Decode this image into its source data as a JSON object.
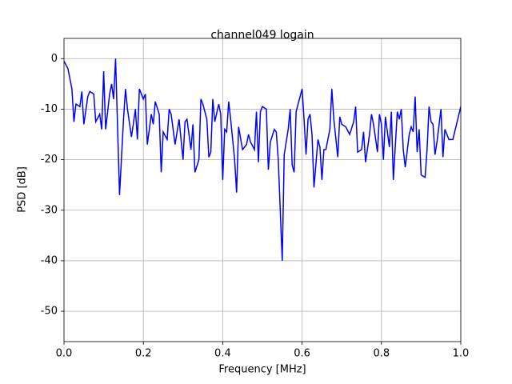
{
  "chart_data": {
    "type": "line",
    "title": "channel049 logain",
    "x_label": "Frequency [MHz]",
    "y_label": "PSD [dB]",
    "xlim": [
      0,
      1
    ],
    "ylim": [
      -56,
      4
    ],
    "xticks": [
      {
        "value": 0,
        "label": "0.0"
      },
      0.2,
      0.4,
      0.6,
      0.8,
      {
        "value": 1,
        "label": "1.0"
      }
    ],
    "yticks": [
      0,
      -10,
      -20,
      -30,
      -40,
      -50
    ],
    "grid": true,
    "series": [
      {
        "name": "channel049",
        "color": "#0000ff",
        "x": [
          0,
          0.01,
          0.02,
          0.025,
          0.03,
          0.04,
          0.045,
          0.05,
          0.06,
          0.065,
          0.075,
          0.08,
          0.09,
          0.095,
          0.1,
          0.105,
          0.115,
          0.12,
          0.125,
          0.13,
          0.14,
          0.15,
          0.155,
          0.16,
          0.17,
          0.18,
          0.185,
          0.19,
          0.2,
          0.205,
          0.21,
          0.22,
          0.225,
          0.23,
          0.24,
          0.245,
          0.25,
          0.26,
          0.265,
          0.27,
          0.28,
          0.29,
          0.3,
          0.305,
          0.31,
          0.32,
          0.325,
          0.33,
          0.34,
          0.345,
          0.35,
          0.36,
          0.365,
          0.37,
          0.375,
          0.38,
          0.39,
          0.395,
          0.4,
          0.405,
          0.41,
          0.415,
          0.42,
          0.43,
          0.435,
          0.44,
          0.45,
          0.46,
          0.465,
          0.47,
          0.48,
          0.485,
          0.49,
          0.495,
          0.5,
          0.51,
          0.515,
          0.52,
          0.53,
          0.535,
          0.54,
          0.55,
          0.555,
          0.565,
          0.57,
          0.575,
          0.58,
          0.585,
          0.59,
          0.6,
          0.605,
          0.61,
          0.615,
          0.62,
          0.625,
          0.63,
          0.64,
          0.645,
          0.65,
          0.655,
          0.66,
          0.67,
          0.675,
          0.68,
          0.69,
          0.695,
          0.7,
          0.71,
          0.72,
          0.73,
          0.735,
          0.74,
          0.75,
          0.755,
          0.76,
          0.77,
          0.775,
          0.78,
          0.79,
          0.795,
          0.8,
          0.805,
          0.81,
          0.82,
          0.825,
          0.83,
          0.84,
          0.845,
          0.85,
          0.855,
          0.86,
          0.87,
          0.875,
          0.88,
          0.885,
          0.89,
          0.895,
          0.9,
          0.91,
          0.915,
          0.92,
          0.925,
          0.93,
          0.935,
          0.94,
          0.95,
          0.955,
          0.96,
          0.97,
          0.98,
          1
        ],
        "values": [
          -0.5,
          -2,
          -6,
          -12.5,
          -9,
          -9.5,
          -6.5,
          -13,
          -7.5,
          -6.5,
          -7,
          -12.5,
          -11,
          -14,
          -2.5,
          -14,
          -7,
          -5,
          -8,
          0,
          -27,
          -12,
          -6,
          -10,
          -15.5,
          -10,
          -16,
          -6,
          -8,
          -7,
          -17,
          -11,
          -13,
          -8.5,
          -11,
          -22.5,
          -14.5,
          -16,
          -10,
          -11,
          -17,
          -12,
          -20,
          -12.5,
          -12,
          -18,
          -13,
          -22.5,
          -20,
          -8,
          -9,
          -12,
          -19.5,
          -18.5,
          -8,
          -12.5,
          -9,
          -11,
          -24,
          -14,
          -14.5,
          -8.5,
          -12,
          -20,
          -26.5,
          -13.5,
          -18,
          -17,
          -15,
          -16.5,
          -18,
          -10.5,
          -20.5,
          -10.5,
          -9.5,
          -10,
          -22,
          -16.5,
          -14,
          -14.5,
          -20,
          -40,
          -19,
          -14,
          -10,
          -21,
          -22.5,
          -10.5,
          -9,
          -6,
          -12,
          -19,
          -12,
          -11,
          -15,
          -25.5,
          -16,
          -17.5,
          -24,
          -18,
          -18,
          -14,
          -6,
          -12,
          -19.5,
          -11.5,
          -13,
          -13.5,
          -15,
          -12.5,
          -9.5,
          -18.5,
          -18,
          -14.5,
          -20.5,
          -15,
          -11,
          -13,
          -18.5,
          -11,
          -13,
          -20,
          -11.5,
          -17.5,
          -10.5,
          -24,
          -10.5,
          -12,
          -10,
          -18,
          -21.5,
          -15,
          -13.5,
          -14.5,
          -7.5,
          -18.5,
          -14,
          -23,
          -23.5,
          -18,
          -9.5,
          -12.5,
          -13,
          -19,
          -16.5,
          -10,
          -19.5,
          -14,
          -16,
          -16,
          -9.5
        ]
      }
    ]
  }
}
